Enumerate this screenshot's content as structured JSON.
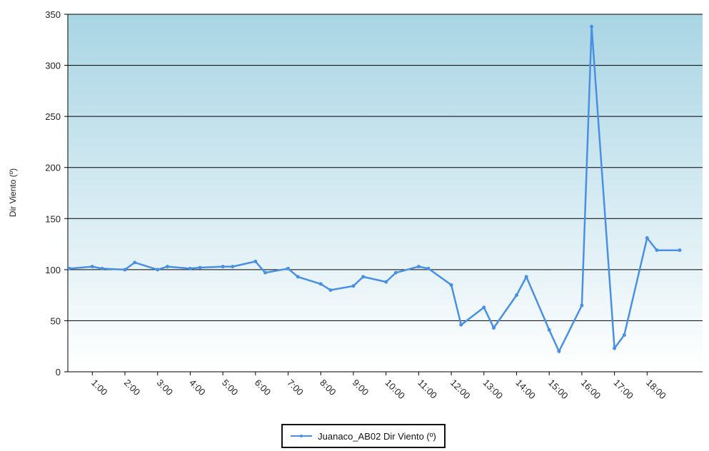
{
  "chart_data": {
    "type": "line",
    "title": "",
    "xlabel": "",
    "ylabel": "Dir Viento (º)",
    "ylim": [
      0,
      350
    ],
    "yticks": [
      0,
      50,
      100,
      150,
      200,
      250,
      300,
      350
    ],
    "xlim": [
      -0.75,
      18.7
    ],
    "xticks": [
      "1:00",
      "2:00",
      "3:00",
      "4:00",
      "5:00",
      "6:00",
      "7:00",
      "8:00",
      "9:00",
      "10:00",
      "11:00",
      "12:00",
      "13:00",
      "14:00",
      "15:00",
      "16:00",
      "17:00",
      "18:00"
    ],
    "grid": true,
    "legend_position": "bottom-center",
    "background_gradient": [
      "#a9d5e4",
      "#ffffff"
    ],
    "series": [
      {
        "name": "Juanaco_AB02 Dir Viento (º)",
        "color": "#4a90e2",
        "x": [
          -0.7,
          0.0,
          0.3,
          1.0,
          1.3,
          2.0,
          2.3,
          3.0,
          3.3,
          4.0,
          4.3,
          5.0,
          5.3,
          6.0,
          6.3,
          7.0,
          7.3,
          8.0,
          8.3,
          9.0,
          9.3,
          10.0,
          10.3,
          11.0,
          11.3,
          12.0,
          12.3,
          13.0,
          13.3,
          14.0,
          14.3,
          15.0,
          15.3,
          16.0,
          16.3,
          17.0,
          17.3,
          18.0
        ],
        "y": [
          101,
          103,
          101,
          100,
          107,
          100,
          103,
          101,
          102,
          103,
          103,
          108,
          97,
          101,
          93,
          86,
          80,
          84,
          93,
          88,
          97,
          103,
          101,
          85,
          46,
          63,
          43,
          75,
          93,
          41,
          20,
          65,
          338,
          23,
          36,
          131,
          119,
          119
        ]
      }
    ]
  },
  "legend": {
    "label": "Juanaco_AB02 Dir Viento (º)"
  }
}
